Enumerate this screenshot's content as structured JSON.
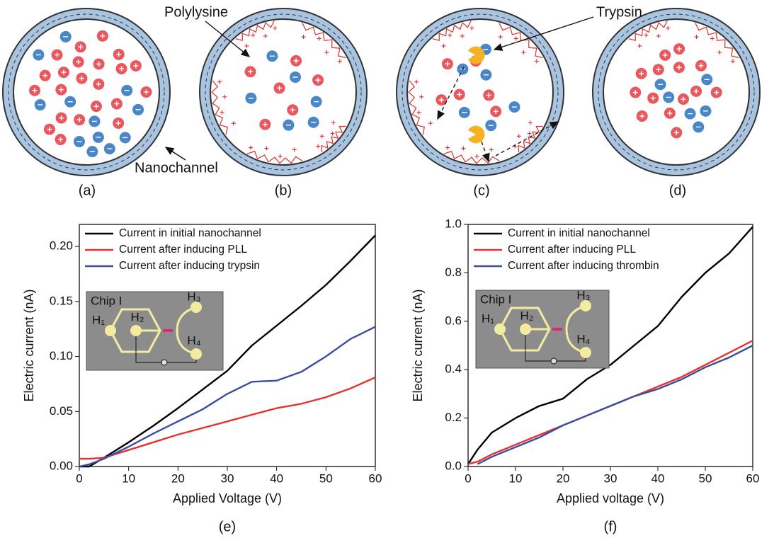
{
  "figure": {
    "panels": [
      "(a)",
      "(b)",
      "(c)",
      "(d)"
    ],
    "annotations": [
      "Polylysine",
      "Trypsin",
      "Nanochannel"
    ]
  },
  "chart_data": [
    {
      "type": "line",
      "caption": "(e)",
      "x_label": "Applied Voltage (V)",
      "y_label": "Electric current (nA)",
      "x": [
        0,
        2,
        5,
        10,
        15,
        20,
        25,
        30,
        35,
        40,
        45,
        50,
        55,
        60
      ],
      "series": [
        {
          "name": "Current in initial nanochannel",
          "color": "#000000",
          "values": [
            0,
            0,
            0.008,
            0.022,
            0.037,
            0.053,
            0.07,
            0.087,
            0.11,
            0.128,
            0.146,
            0.165,
            0.187,
            0.21
          ]
        },
        {
          "name": "Current after inducing PLL",
          "color": "#e8312f",
          "values": [
            0.007,
            0.007,
            0.008,
            0.015,
            0.022,
            0.029,
            0.035,
            0.041,
            0.047,
            0.053,
            0.057,
            0.063,
            0.071,
            0.081
          ]
        },
        {
          "name": "Current after inducing trypsin",
          "color": "#3a4ea0",
          "values": [
            0,
            0.002,
            0.007,
            0.018,
            0.03,
            0.041,
            0.052,
            0.066,
            0.077,
            0.078,
            0.086,
            0.1,
            0.116,
            0.127
          ]
        }
      ],
      "xlim": [
        0,
        60
      ],
      "xticks": [
        0,
        10,
        20,
        30,
        40,
        50,
        60
      ],
      "ylim": [
        0,
        0.22
      ],
      "yticks": [
        {
          "value": 0,
          "label": "0.00"
        },
        {
          "value": 0.05,
          "label": "0.05"
        },
        {
          "value": 0.1,
          "label": "0.10"
        },
        {
          "value": 0.15,
          "label": "0.15"
        },
        {
          "value": 0.2,
          "label": "0.20"
        }
      ],
      "grid": false,
      "legend": "upper left",
      "inset_labels": [
        "Chip I",
        "H₁",
        "H₂",
        "H₃",
        "H₄"
      ]
    },
    {
      "type": "line",
      "caption": "(f)",
      "x_label": "Applied voltage (V)",
      "y_label": "Electric current (nA)",
      "x": [
        0,
        2,
        5,
        10,
        15,
        20,
        25,
        30,
        35,
        40,
        45,
        50,
        55,
        60
      ],
      "series": [
        {
          "name": "Current in initial nanochannel",
          "color": "#000000",
          "values": [
            0.01,
            0.07,
            0.14,
            0.2,
            0.25,
            0.28,
            0.36,
            0.42,
            0.5,
            0.58,
            0.7,
            0.8,
            0.88,
            0.99
          ]
        },
        {
          "name": "Current after inducing PLL",
          "color": "#e8312f",
          "values": [
            0.01,
            0.02,
            0.05,
            0.09,
            0.13,
            0.17,
            0.21,
            0.25,
            0.29,
            0.33,
            0.37,
            0.42,
            0.47,
            0.52
          ]
        },
        {
          "name": "Current after inducing thrombin",
          "color": "#3a4ea0",
          "values": [
            null,
            0.01,
            0.04,
            0.08,
            0.12,
            0.17,
            0.21,
            0.25,
            0.29,
            0.32,
            0.36,
            0.41,
            0.45,
            0.5
          ]
        }
      ],
      "xlim": [
        0,
        60
      ],
      "xticks": [
        0,
        10,
        20,
        30,
        40,
        50,
        60
      ],
      "ylim": [
        0,
        1
      ],
      "yticks": [
        {
          "value": 0,
          "label": "0.0"
        },
        {
          "value": 0.2,
          "label": "0.2"
        },
        {
          "value": 0.4,
          "label": "0.4"
        },
        {
          "value": 0.6,
          "label": "0.6"
        },
        {
          "value": 0.8,
          "label": "0.8"
        },
        {
          "value": 1,
          "label": "1.0"
        }
      ],
      "grid": false,
      "legend": "upper left",
      "inset_labels": [
        "Chip I",
        "H₁",
        "H₂",
        "H₃",
        "H₄"
      ]
    }
  ]
}
